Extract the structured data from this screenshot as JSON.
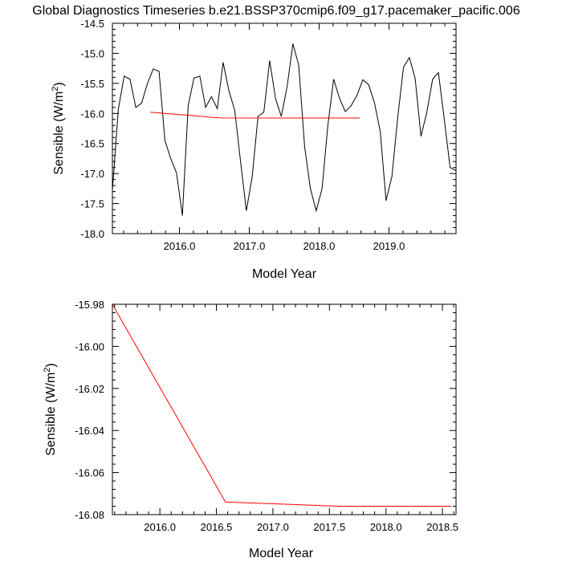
{
  "title": "Global Diagnostics Timeseries b.e21.BSSP370cmip6.f09_g17.pacemaker_pacific.006",
  "chart_data": [
    {
      "type": "line",
      "xlabel": "Model Year",
      "ylabel": "Sensible (W/m",
      "ylabel_sup": "2",
      "ylabel_tail": ")",
      "xlim": [
        2015.04,
        2019.96
      ],
      "ylim": [
        -18.0,
        -14.5
      ],
      "xticks": [
        2016.0,
        2017.0,
        2018.0,
        2019.0
      ],
      "xtick_labels": [
        "2016.0",
        "2017.0",
        "2018.0",
        "2019.0"
      ],
      "yticks": [
        -18.0,
        -17.5,
        -17.0,
        -16.5,
        -16.0,
        -15.5,
        -15.0,
        -14.5
      ],
      "ytick_labels": [
        "-18.0",
        "-17.5",
        "-17.0",
        "-16.5",
        "-16.0",
        "-15.5",
        "-15.0",
        "-14.5"
      ],
      "series": [
        {
          "color": "#000000",
          "x": [
            2015.042,
            2015.125,
            2015.208,
            2015.292,
            2015.375,
            2015.458,
            2015.542,
            2015.625,
            2015.708,
            2015.792,
            2015.875,
            2015.958,
            2016.042,
            2016.125,
            2016.208,
            2016.292,
            2016.375,
            2016.458,
            2016.542,
            2016.625,
            2016.708,
            2016.792,
            2016.875,
            2016.958,
            2017.042,
            2017.125,
            2017.208,
            2017.292,
            2017.375,
            2017.458,
            2017.542,
            2017.625,
            2017.708,
            2017.792,
            2017.875,
            2017.958,
            2018.042,
            2018.125,
            2018.208,
            2018.292,
            2018.375,
            2018.458,
            2018.542,
            2018.625,
            2018.708,
            2018.792,
            2018.875,
            2018.958,
            2019.042,
            2019.125,
            2019.208,
            2019.292,
            2019.375,
            2019.458,
            2019.542,
            2019.625,
            2019.708,
            2019.792,
            2019.875,
            2019.958
          ],
          "y": [
            -17.25,
            -15.93,
            -15.38,
            -15.43,
            -15.9,
            -15.83,
            -15.5,
            -15.26,
            -15.3,
            -16.45,
            -16.75,
            -16.99,
            -17.7,
            -15.87,
            -15.41,
            -15.38,
            -15.9,
            -15.72,
            -15.92,
            -15.15,
            -15.62,
            -15.95,
            -16.8,
            -17.62,
            -17.05,
            -16.05,
            -15.98,
            -15.12,
            -15.75,
            -16.05,
            -15.55,
            -14.84,
            -15.2,
            -16.55,
            -17.25,
            -17.62,
            -17.25,
            -16.2,
            -15.43,
            -15.75,
            -15.97,
            -15.87,
            -15.7,
            -15.44,
            -15.52,
            -15.82,
            -16.3,
            -17.45,
            -17.05,
            -16.07,
            -15.23,
            -15.07,
            -15.42,
            -16.38,
            -15.98,
            -15.43,
            -15.32,
            -16.1,
            -16.9,
            -16.95
          ]
        },
        {
          "color": "#ff0000",
          "x": [
            2015.58,
            2016.58,
            2017.58,
            2018.58
          ],
          "y": [
            -15.98,
            -16.074,
            -16.076,
            -16.076
          ]
        }
      ]
    },
    {
      "type": "line",
      "xlabel": "Model Year",
      "ylabel": "Sensible (W/m",
      "ylabel_sup": "2",
      "ylabel_tail": ")",
      "xlim": [
        2015.58,
        2018.62
      ],
      "ylim": [
        -16.08,
        -15.98
      ],
      "xticks": [
        2016.0,
        2016.5,
        2017.0,
        2017.5,
        2018.0,
        2018.5
      ],
      "xtick_labels": [
        "2016.0",
        "2016.5",
        "2017.0",
        "2017.5",
        "2018.0",
        "2018.5"
      ],
      "yticks": [
        -16.08,
        -16.06,
        -16.04,
        -16.02,
        -16.0,
        -15.98
      ],
      "ytick_labels": [
        "-16.08",
        "-16.06",
        "-16.04",
        "-16.02",
        "-16.00",
        "-15.98"
      ],
      "series": [
        {
          "color": "#ff0000",
          "x": [
            2015.58,
            2016.58,
            2017.58,
            2018.58
          ],
          "y": [
            -15.98,
            -16.074,
            -16.076,
            -16.076
          ]
        }
      ]
    }
  ]
}
